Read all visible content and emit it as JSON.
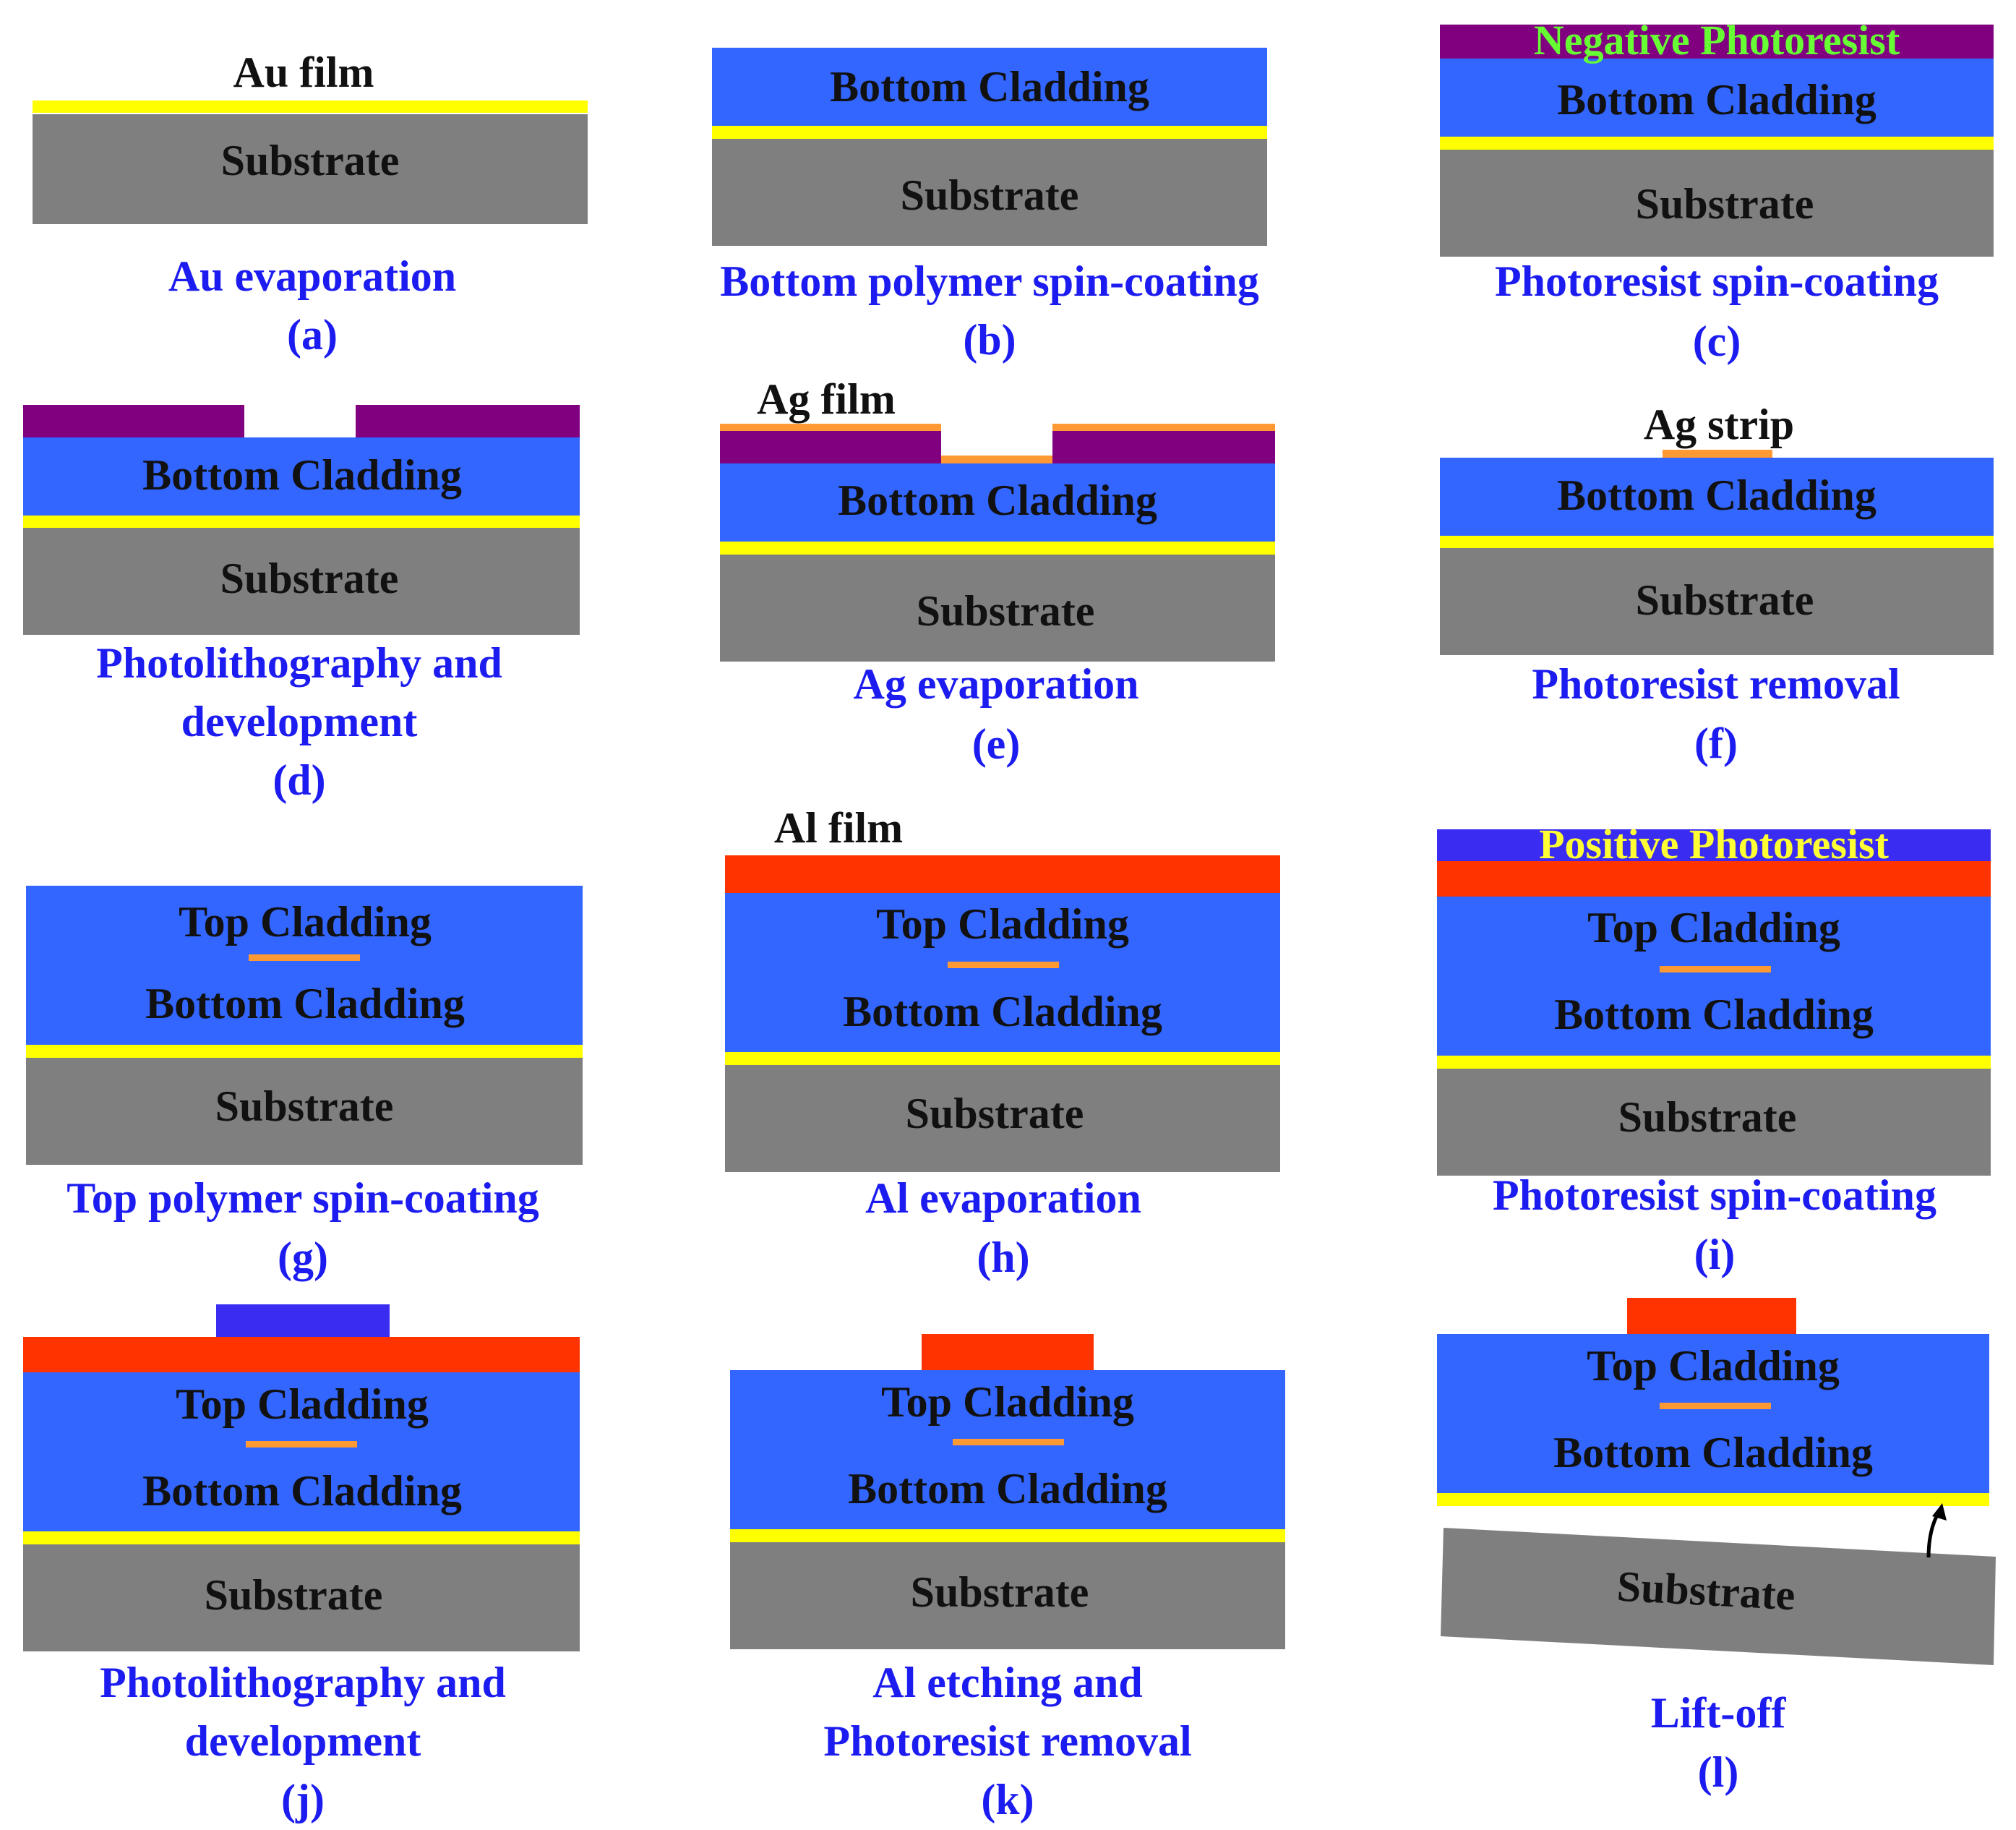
{
  "colors": {
    "substrate": "#7f7f7f",
    "cladding": "#3366ff",
    "gold": "#ffff00",
    "silver": "#ff9933",
    "aluminum": "#ff3300",
    "negative_photoresist": "#800080",
    "positive_photoresist": "#3a2cf0",
    "layer_text": "#111111",
    "caption_text": "#1c1cf0",
    "negative_label_text": "#66ff33",
    "positive_label_text": "#ffff33"
  },
  "layers": {
    "substrate": "Substrate",
    "bottom_cladding": "Bottom Cladding",
    "top_cladding": "Top Cladding",
    "negative_photoresist": "Negative Photoresist",
    "positive_photoresist": "Positive Photoresist"
  },
  "film_labels": {
    "au": "Au film",
    "ag": "Ag film",
    "ag_strip": "Ag strip",
    "al": "Al film"
  },
  "steps": {
    "a": {
      "caption": [
        "Au evaporation"
      ],
      "tag": "(a)"
    },
    "b": {
      "caption": [
        "Bottom polymer spin-coating"
      ],
      "tag": "(b)"
    },
    "c": {
      "caption": [
        "Photoresist spin-coating"
      ],
      "tag": "(c)"
    },
    "d": {
      "caption": [
        "Photolithography and",
        "development"
      ],
      "tag": "(d)"
    },
    "e": {
      "caption": [
        "Ag evaporation"
      ],
      "tag": "(e)"
    },
    "f": {
      "caption": [
        "Photoresist removal"
      ],
      "tag": "(f)"
    },
    "g": {
      "caption": [
        "Top polymer spin-coating"
      ],
      "tag": "(g)"
    },
    "h": {
      "caption": [
        "Al evaporation"
      ],
      "tag": "(h)"
    },
    "i": {
      "caption": [
        "Photoresist spin-coating"
      ],
      "tag": "(i)"
    },
    "j": {
      "caption": [
        "Photolithography and",
        "development"
      ],
      "tag": "(j)"
    },
    "k": {
      "caption": [
        "Al etching and",
        "Photoresist removal"
      ],
      "tag": "(k)"
    },
    "l": {
      "caption": [
        "Lift-off"
      ],
      "tag": "(l)"
    }
  },
  "arrow_icon": "curved-arrow-icon"
}
